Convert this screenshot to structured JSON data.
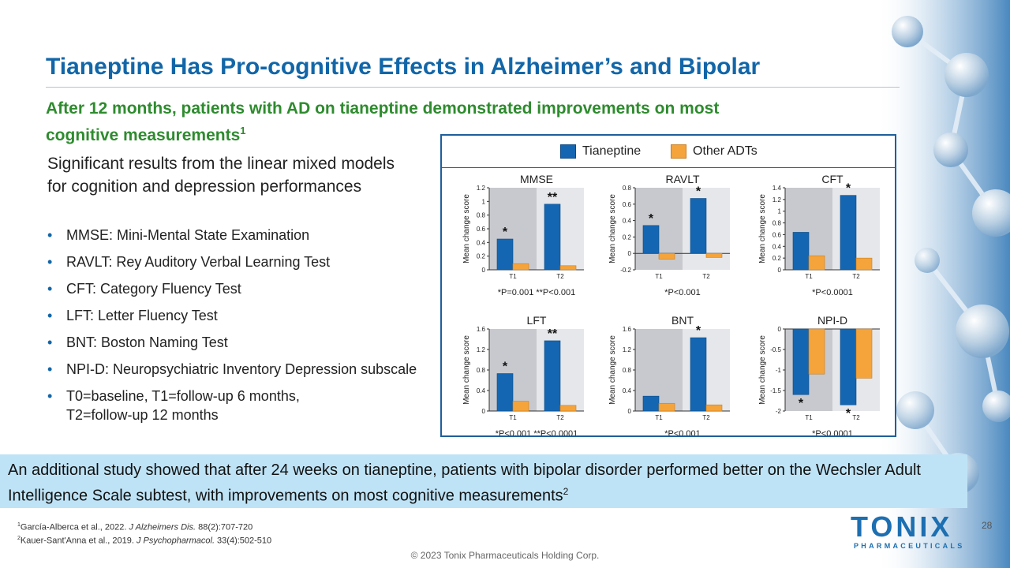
{
  "title": "Tianeptine Has Pro-cognitive Effects in Alzheimer’s and Bipolar",
  "subtitle": {
    "text": "After 12 months, patients with AD on tianeptine demonstrated improvements on most cognitive measurements",
    "sup": "1"
  },
  "intro": "Significant results from the linear mixed models for cognition and depression performances",
  "bullets": [
    "MMSE: Mini-Mental State Examination",
    "RAVLT: Rey Auditory Verbal Learning Test",
    "CFT: Category Fluency Test",
    "LFT: Letter Fluency Test",
    "BNT: Boston Naming Test",
    "NPI-D: Neuropsychiatric Inventory Depression subscale",
    "T0=baseline, T1=follow-up 6 months,\nT2=follow-up 12 months"
  ],
  "legend": {
    "series1": "Tianeptine",
    "series2": "Other ADTs"
  },
  "colors": {
    "title": "#1266a8",
    "subtitle": "#2e8b2e",
    "tianeptine": "#1466b2",
    "other": "#f5a43c",
    "panel_border": "#1e5f9c",
    "banner": "#bfe3f6"
  },
  "chart_data": [
    {
      "type": "bar",
      "title": "MMSE",
      "ylabel": "Mean change score",
      "categories": [
        "T1",
        "T2"
      ],
      "ylim": [
        0,
        1.2
      ],
      "yticks": [
        "0",
        "0.2",
        "0.4",
        "0.6",
        "0.8",
        "1",
        "1.2"
      ],
      "series": [
        {
          "name": "Tianeptine",
          "values": [
            0.45,
            0.96
          ]
        },
        {
          "name": "Other ADTs",
          "values": [
            0.09,
            0.06
          ]
        }
      ],
      "significance": [
        "*",
        "**"
      ],
      "note": "*P=0.001 **P<0.001"
    },
    {
      "type": "bar",
      "title": "RAVLT",
      "ylabel": "Mean change score",
      "categories": [
        "T1",
        "T2"
      ],
      "ylim": [
        -0.2,
        0.8
      ],
      "yticks": [
        "-0.2",
        "0",
        "0.2",
        "0.4",
        "0.6",
        "0.8"
      ],
      "series": [
        {
          "name": "Tianeptine",
          "values": [
            0.34,
            0.67
          ]
        },
        {
          "name": "Other ADTs",
          "values": [
            -0.07,
            -0.05
          ]
        }
      ],
      "significance": [
        "*",
        "*"
      ],
      "note": "*P<0.001"
    },
    {
      "type": "bar",
      "title": "CFT",
      "ylabel": "Mean change score",
      "categories": [
        "T1",
        "T2"
      ],
      "ylim": [
        0,
        1.4
      ],
      "yticks": [
        "0",
        "0.2",
        "0.4",
        "0.6",
        "0.8",
        "1",
        "1.2",
        "1.4"
      ],
      "series": [
        {
          "name": "Tianeptine",
          "values": [
            0.64,
            1.27
          ]
        },
        {
          "name": "Other ADTs",
          "values": [
            0.24,
            0.2
          ]
        }
      ],
      "significance": [
        "",
        "*"
      ],
      "note": "*P<0.0001"
    },
    {
      "type": "bar",
      "title": "LFT",
      "ylabel": "Mean change score",
      "categories": [
        "T1",
        "T2"
      ],
      "ylim": [
        0,
        1.6
      ],
      "yticks": [
        "0",
        "0.4",
        "0.8",
        "1.2",
        "1.6"
      ],
      "series": [
        {
          "name": "Tianeptine",
          "values": [
            0.73,
            1.37
          ]
        },
        {
          "name": "Other ADTs",
          "values": [
            0.19,
            0.11
          ]
        }
      ],
      "significance": [
        "*",
        "**"
      ],
      "note": "*P<0.001 **P<0.0001"
    },
    {
      "type": "bar",
      "title": "BNT",
      "ylabel": "Mean change score",
      "categories": [
        "T1",
        "T2"
      ],
      "ylim": [
        0,
        1.6
      ],
      "yticks": [
        "0",
        "0.4",
        "0.8",
        "1.2",
        "1.6"
      ],
      "series": [
        {
          "name": "Tianeptine",
          "values": [
            0.29,
            1.43
          ]
        },
        {
          "name": "Other ADTs",
          "values": [
            0.15,
            0.12
          ]
        }
      ],
      "significance": [
        "",
        "*"
      ],
      "note": "*P<0.001"
    },
    {
      "type": "bar",
      "title": "NPI-D",
      "ylabel": "Mean change score",
      "categories": [
        "T1",
        "T2"
      ],
      "ylim": [
        -2,
        0
      ],
      "yticks": [
        "-2",
        "-1.5",
        "-1",
        "-0.5",
        "0"
      ],
      "series": [
        {
          "name": "Tianeptine",
          "values": [
            -1.6,
            -1.85
          ]
        },
        {
          "name": "Other ADTs",
          "values": [
            -1.1,
            -1.2
          ]
        }
      ],
      "significance": [
        "*",
        "*"
      ],
      "note": "*P<0.0001"
    }
  ],
  "banner": {
    "text": "An additional study showed that after 24 weeks on tianeptine, patients with bipolar disorder performed better on the Wechsler Adult Intelligence Scale subtest, with improvements on most cognitive measurements",
    "sup": "2"
  },
  "references": [
    {
      "sup": "1",
      "authors": "García-Alberca et al., 2022. ",
      "journal": "J Alzheimers Dis.",
      "rest": " 88(2):707-720"
    },
    {
      "sup": "2",
      "authors": "Kauer-Sant'Anna et al., 2019. ",
      "journal": "J Psychopharmacol.",
      "rest": " 33(4):502-510"
    }
  ],
  "copyright": "© 2023 Tonix Pharmaceuticals Holding Corp.",
  "page_number": "28",
  "logo": {
    "word": "TONIX",
    "sub": "PHARMACEUTICALS"
  }
}
